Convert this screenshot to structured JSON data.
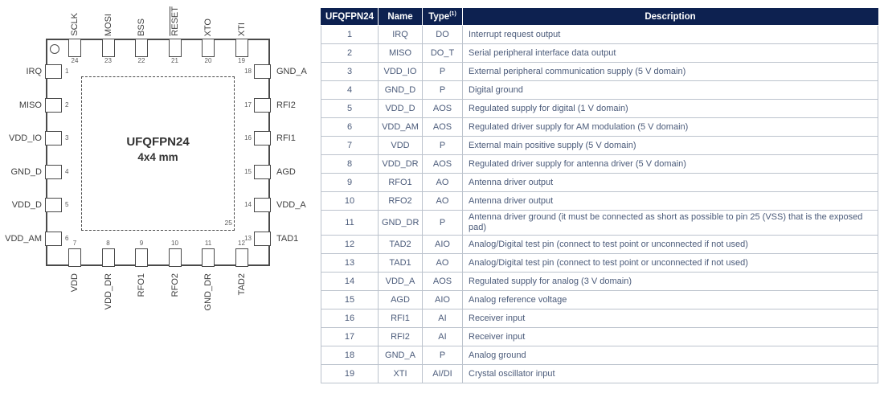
{
  "diagram": {
    "title": "UFQFPN24",
    "subtitle": "4x4 mm",
    "exposed_pad_pin": "25",
    "pins": {
      "top": [
        {
          "num": "24",
          "label": "SCLK"
        },
        {
          "num": "23",
          "label": "MOSI"
        },
        {
          "num": "22",
          "label": "BSS"
        },
        {
          "num": "21",
          "label": "RESET",
          "overline": true
        },
        {
          "num": "20",
          "label": "XTO"
        },
        {
          "num": "19",
          "label": "XTI"
        }
      ],
      "left": [
        {
          "num": "1",
          "label": "IRQ"
        },
        {
          "num": "2",
          "label": "MISO"
        },
        {
          "num": "3",
          "label": "VDD_IO"
        },
        {
          "num": "4",
          "label": "GND_D"
        },
        {
          "num": "5",
          "label": "VDD_D"
        },
        {
          "num": "6",
          "label": "VDD_AM"
        }
      ],
      "right": [
        {
          "num": "18",
          "label": "GND_A"
        },
        {
          "num": "17",
          "label": "RFI2"
        },
        {
          "num": "16",
          "label": "RFI1"
        },
        {
          "num": "15",
          "label": "AGD"
        },
        {
          "num": "14",
          "label": "VDD_A"
        },
        {
          "num": "13",
          "label": "TAD1"
        }
      ],
      "bottom": [
        {
          "num": "7",
          "label": "VDD"
        },
        {
          "num": "8",
          "label": "VDD_DR"
        },
        {
          "num": "9",
          "label": "RFO1"
        },
        {
          "num": "10",
          "label": "RFO2"
        },
        {
          "num": "11",
          "label": "GND_DR"
        },
        {
          "num": "12",
          "label": "TAD2"
        }
      ]
    }
  },
  "table": {
    "headers": {
      "pin": "UFQFPN24",
      "name": "Name",
      "type": "Type",
      "type_sup": "(1)",
      "description": "Description"
    },
    "rows": [
      {
        "pin": "1",
        "name": "IRQ",
        "type": "DO",
        "description": "Interrupt request output"
      },
      {
        "pin": "2",
        "name": "MISO",
        "type": "DO_T",
        "description": "Serial peripheral interface data output"
      },
      {
        "pin": "3",
        "name": "VDD_IO",
        "type": "P",
        "description": "External peripheral communication supply (5 V domain)"
      },
      {
        "pin": "4",
        "name": "GND_D",
        "type": "P",
        "description": "Digital ground"
      },
      {
        "pin": "5",
        "name": "VDD_D",
        "type": "AOS",
        "description": "Regulated supply for digital (1 V domain)"
      },
      {
        "pin": "6",
        "name": "VDD_AM",
        "type": "AOS",
        "description": "Regulated driver supply for AM modulation (5 V domain)"
      },
      {
        "pin": "7",
        "name": "VDD",
        "type": "P",
        "description": "External main positive supply (5 V domain)"
      },
      {
        "pin": "8",
        "name": "VDD_DR",
        "type": "AOS",
        "description": "Regulated driver supply for antenna driver (5 V domain)"
      },
      {
        "pin": "9",
        "name": "RFO1",
        "type": "AO",
        "description": "Antenna driver output"
      },
      {
        "pin": "10",
        "name": "RFO2",
        "type": "AO",
        "description": "Antenna driver output"
      },
      {
        "pin": "11",
        "name": "GND_DR",
        "type": "P",
        "description": "Antenna driver ground (it must be connected as short as possible to pin 25 (VSS) that is the exposed pad)"
      },
      {
        "pin": "12",
        "name": "TAD2",
        "type": "AIO",
        "description": "Analog/Digital test pin (connect to test point or unconnected if not used)"
      },
      {
        "pin": "13",
        "name": "TAD1",
        "type": "AO",
        "description": "Analog/Digital test pin (connect to test point or unconnected if not used)"
      },
      {
        "pin": "14",
        "name": "VDD_A",
        "type": "AOS",
        "description": "Regulated supply for analog (3 V domain)"
      },
      {
        "pin": "15",
        "name": "AGD",
        "type": "AIO",
        "description": "Analog reference voltage"
      },
      {
        "pin": "16",
        "name": "RFI1",
        "type": "AI",
        "description": "Receiver input"
      },
      {
        "pin": "17",
        "name": "RFI2",
        "type": "AI",
        "description": "Receiver input"
      },
      {
        "pin": "18",
        "name": "GND_A",
        "type": "P",
        "description": "Analog ground"
      },
      {
        "pin": "19",
        "name": "XTI",
        "type": "AI/DI",
        "description": "Crystal oscillator input"
      }
    ]
  },
  "colors": {
    "table_header_bg": "#0d2150",
    "table_body_text": "#4b5b7a",
    "table_border": "#bcc3cd",
    "diagram_line": "#4a4a4a"
  }
}
